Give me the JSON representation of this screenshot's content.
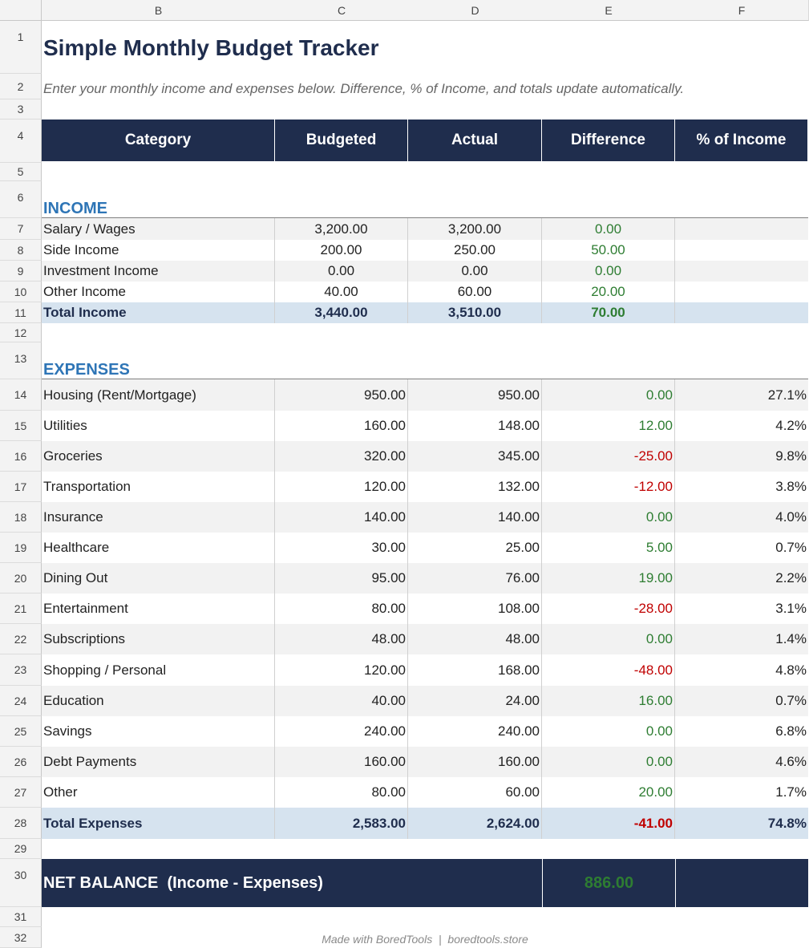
{
  "columns": [
    "B",
    "C",
    "D",
    "E",
    "F"
  ],
  "rows": [
    "1",
    "2",
    "3",
    "4",
    "5",
    "6",
    "7",
    "8",
    "9",
    "10",
    "11",
    "12",
    "13",
    "14",
    "15",
    "16",
    "17",
    "18",
    "19",
    "20",
    "21",
    "22",
    "23",
    "24",
    "25",
    "26",
    "27",
    "28",
    "29",
    "30",
    "31",
    "32"
  ],
  "title": "Simple Monthly Budget Tracker",
  "subtitle": "Enter your monthly income and expenses below. Difference, % of Income, and totals update automatically.",
  "headers": [
    "Category",
    "Budgeted",
    "Actual",
    "Difference",
    "% of Income"
  ],
  "income": {
    "label": "INCOME",
    "items": [
      {
        "category": "Salary / Wages",
        "budgeted": "3,200.00",
        "actual": "3,200.00",
        "difference": "0.00",
        "diff_sign": "pos",
        "pct": ""
      },
      {
        "category": "Side Income",
        "budgeted": "200.00",
        "actual": "250.00",
        "difference": "50.00",
        "diff_sign": "pos",
        "pct": ""
      },
      {
        "category": "Investment Income",
        "budgeted": "0.00",
        "actual": "0.00",
        "difference": "0.00",
        "diff_sign": "pos",
        "pct": ""
      },
      {
        "category": "Other Income",
        "budgeted": "40.00",
        "actual": "60.00",
        "difference": "20.00",
        "diff_sign": "pos",
        "pct": ""
      }
    ],
    "total": {
      "category": "Total Income",
      "budgeted": "3,440.00",
      "actual": "3,510.00",
      "difference": "70.00",
      "diff_sign": "pos",
      "pct": ""
    }
  },
  "expenses": {
    "label": "EXPENSES",
    "items": [
      {
        "category": "Housing (Rent/Mortgage)",
        "budgeted": "950.00",
        "actual": "950.00",
        "difference": "0.00",
        "diff_sign": "pos",
        "pct": "27.1%"
      },
      {
        "category": "Utilities",
        "budgeted": "160.00",
        "actual": "148.00",
        "difference": "12.00",
        "diff_sign": "pos",
        "pct": "4.2%"
      },
      {
        "category": "Groceries",
        "budgeted": "320.00",
        "actual": "345.00",
        "difference": "-25.00",
        "diff_sign": "neg",
        "pct": "9.8%"
      },
      {
        "category": "Transportation",
        "budgeted": "120.00",
        "actual": "132.00",
        "difference": "-12.00",
        "diff_sign": "neg",
        "pct": "3.8%"
      },
      {
        "category": "Insurance",
        "budgeted": "140.00",
        "actual": "140.00",
        "difference": "0.00",
        "diff_sign": "pos",
        "pct": "4.0%"
      },
      {
        "category": "Healthcare",
        "budgeted": "30.00",
        "actual": "25.00",
        "difference": "5.00",
        "diff_sign": "pos",
        "pct": "0.7%"
      },
      {
        "category": "Dining Out",
        "budgeted": "95.00",
        "actual": "76.00",
        "difference": "19.00",
        "diff_sign": "pos",
        "pct": "2.2%"
      },
      {
        "category": "Entertainment",
        "budgeted": "80.00",
        "actual": "108.00",
        "difference": "-28.00",
        "diff_sign": "neg",
        "pct": "3.1%"
      },
      {
        "category": "Subscriptions",
        "budgeted": "48.00",
        "actual": "48.00",
        "difference": "0.00",
        "diff_sign": "pos",
        "pct": "1.4%"
      },
      {
        "category": "Shopping / Personal",
        "budgeted": "120.00",
        "actual": "168.00",
        "difference": "-48.00",
        "diff_sign": "neg",
        "pct": "4.8%"
      },
      {
        "category": "Education",
        "budgeted": "40.00",
        "actual": "24.00",
        "difference": "16.00",
        "diff_sign": "pos",
        "pct": "0.7%"
      },
      {
        "category": "Savings",
        "budgeted": "240.00",
        "actual": "240.00",
        "difference": "0.00",
        "diff_sign": "pos",
        "pct": "6.8%"
      },
      {
        "category": "Debt Payments",
        "budgeted": "160.00",
        "actual": "160.00",
        "difference": "0.00",
        "diff_sign": "pos",
        "pct": "4.6%"
      },
      {
        "category": "Other",
        "budgeted": "80.00",
        "actual": "60.00",
        "difference": "20.00",
        "diff_sign": "pos",
        "pct": "1.7%"
      }
    ],
    "total": {
      "category": "Total Expenses",
      "budgeted": "2,583.00",
      "actual": "2,624.00",
      "difference": "-41.00",
      "diff_sign": "neg",
      "pct": "74.8%"
    }
  },
  "net": {
    "label": "NET BALANCE  (Income - Expenses)",
    "value": "886.00"
  },
  "footer": "Made with BoredTools  |  boredtools.store",
  "colors": {
    "navy": "#1f2d4d",
    "accent": "#2e75b6",
    "positive": "#2e7d32",
    "negative": "#c00000",
    "total_row": "#d6e3ef",
    "zebra": "#f2f2f2"
  }
}
